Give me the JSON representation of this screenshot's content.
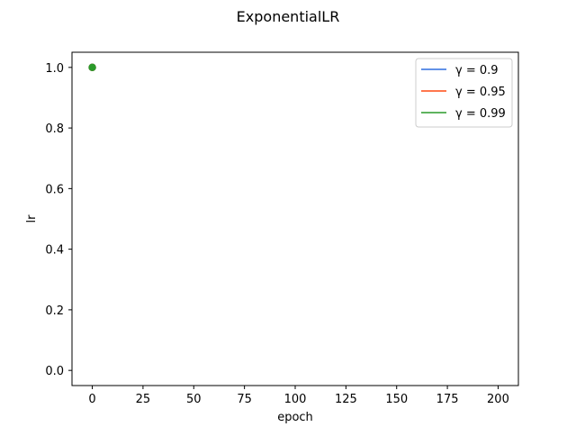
{
  "chart_data": {
    "type": "line",
    "title": "ExponentialLR",
    "xlabel": "epoch",
    "ylabel": "lr",
    "xlim": [
      -10,
      210
    ],
    "ylim": [
      -0.05,
      1.05
    ],
    "xticks": [
      0,
      25,
      50,
      75,
      100,
      125,
      150,
      175,
      200
    ],
    "yticks": [
      0.0,
      0.2,
      0.4,
      0.6,
      0.8,
      1.0
    ],
    "xtick_labels": [
      "0",
      "25",
      "50",
      "75",
      "100",
      "125",
      "150",
      "175",
      "200"
    ],
    "ytick_labels": [
      "0.0",
      "0.2",
      "0.4",
      "0.6",
      "0.8",
      "1.0"
    ],
    "legend_position": "top-right",
    "grid": false,
    "series": [
      {
        "name": "γ = 0.9",
        "legend_label": "γ = 0.9",
        "color": "#2e6ee0",
        "x": [
          0
        ],
        "y": [
          1.0
        ]
      },
      {
        "name": "γ = 0.95",
        "legend_label": "γ = 0.95",
        "color": "#ff4a12",
        "x": [
          0
        ],
        "y": [
          1.0
        ]
      },
      {
        "name": "γ = 0.99",
        "legend_label": "γ = 0.99",
        "color": "#2a9a2a",
        "x": [
          0
        ],
        "y": [
          1.0
        ]
      }
    ]
  }
}
